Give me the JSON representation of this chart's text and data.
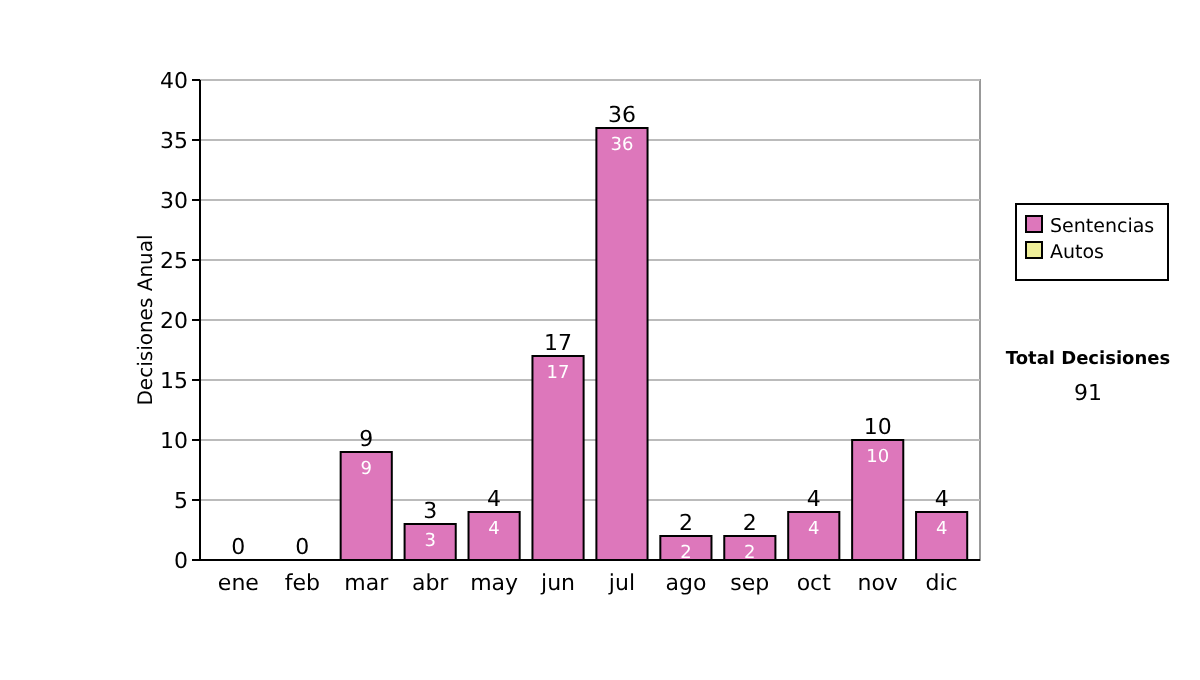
{
  "chart_data": {
    "type": "bar",
    "stacked": true,
    "ylabel": "Decisiones Anual",
    "categories": [
      "ene",
      "feb",
      "mar",
      "abr",
      "may",
      "jun",
      "jul",
      "ago",
      "sep",
      "oct",
      "nov",
      "dic"
    ],
    "series": [
      {
        "name": "Sentencias",
        "color": "#dd77bb",
        "values": [
          0,
          0,
          9,
          3,
          4,
          17,
          36,
          2,
          2,
          4,
          10,
          4
        ],
        "value_labels": [
          null,
          null,
          "9",
          "3",
          "4",
          "17",
          "36",
          "2",
          "2",
          "4",
          "10",
          "4"
        ]
      },
      {
        "name": "Autos",
        "color": "#eeee99",
        "values": [
          0,
          0,
          0,
          0,
          0,
          0,
          0,
          0,
          0,
          0,
          0,
          0
        ]
      }
    ],
    "totals": [
      "0",
      "0",
      "9",
      "3",
      "4",
      "17",
      "36",
      "2",
      "2",
      "4",
      "10",
      "4"
    ],
    "ylim": [
      0,
      40
    ],
    "yticks": [
      0,
      5,
      10,
      15,
      20,
      25,
      30,
      35,
      40
    ],
    "grid": "y",
    "legend": "right",
    "annotations": [
      "Total Decisiones",
      "91"
    ]
  }
}
